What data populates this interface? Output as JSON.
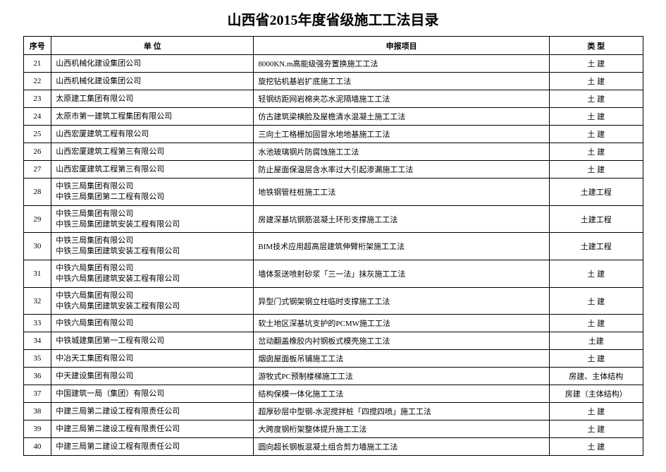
{
  "title": "山西省2015年度省级施工工法目录",
  "columns": {
    "seq": "序号",
    "unit": "单 位",
    "project": "申报项目",
    "type": "类 型"
  },
  "rows": [
    {
      "seq": "21",
      "unit": "山西机械化建设集团公司",
      "project": "8000KN.m高能级强夯置换施工工法",
      "type": "土 建"
    },
    {
      "seq": "22",
      "unit": "山西机械化建设集团公司",
      "project": "旋挖钻机基岩扩底施工工法",
      "type": "土 建"
    },
    {
      "seq": "23",
      "unit": "太原建工集团有限公司",
      "project": "轻钢纺距网岩棉夹芯水泥隔墙施工工法",
      "type": "土 建"
    },
    {
      "seq": "24",
      "unit": "太原市第一建筑工程集团有限公司",
      "project": "仿古建筑梁横脸及屋檐清水混凝土施工工法",
      "type": "土 建"
    },
    {
      "seq": "25",
      "unit": "山西宏厦建筑工程有限公司",
      "project": "三向土工格栅加固冒水地地基施工工法",
      "type": "土 建"
    },
    {
      "seq": "26",
      "unit": "山西宏厦建筑工程第三有限公司",
      "project": "水池玻璃钢片防腐蚀施工工法",
      "type": "土 建"
    },
    {
      "seq": "27",
      "unit": "山西宏厦建筑工程第三有限公司",
      "project": "防止屋面保温层含水率过大引起渗漏施工工法",
      "type": "土 建"
    },
    {
      "seq": "28",
      "unit": "中铁三局集团有限公司\n中铁三局集团第二工程有限公司",
      "project": "地铁钢管柱桩施工工法",
      "type": "土建工程"
    },
    {
      "seq": "29",
      "unit": "中铁三局集团有限公司\n中铁三局集团建筑安装工程有限公司",
      "project": "房建深基坑钢筋混凝土环形支撑施工工法",
      "type": "土建工程"
    },
    {
      "seq": "30",
      "unit": "中铁三局集团有限公司\n中铁三局集团建筑安装工程有限公司",
      "project": "BIM技术应用超高层建筑伸臂桁架施工工法",
      "type": "土建工程"
    },
    {
      "seq": "31",
      "unit": "中铁六局集团有限公司\n中铁六局集团建筑安装工程有限公司",
      "project": "墙体泵送喷射砂浆「三一法」抹灰施工工法",
      "type": "土 建"
    },
    {
      "seq": "32",
      "unit": "中铁六局集团有限公司\n中铁六局集团建筑安装工程有限公司",
      "project": "异型门式钢架钢立柱临时支撑施工工法",
      "type": "土 建"
    },
    {
      "seq": "33",
      "unit": "中铁六局集团有限公司",
      "project": "软土地区深基坑支护的PCMW施工工法",
      "type": "土 建"
    },
    {
      "seq": "34",
      "unit": "中铁城建集团第一工程有限公司",
      "project": "岔动翻盖橡胶内衬钢板式模壳施工工法",
      "type": "土建"
    },
    {
      "seq": "35",
      "unit": "中冶天工集团有限公司",
      "project": "烟囱屋面板吊铺施工工法",
      "type": "土 建"
    },
    {
      "seq": "36",
      "unit": "中天建设集团有限公司",
      "project": "游牧式PC预制楼梯施工工法",
      "type": "房建、主体结构"
    },
    {
      "seq": "37",
      "unit": "中国建筑一局（集团）有限公司",
      "project": "结构保模一体化施工工法",
      "type": "房建（主体结构）"
    },
    {
      "seq": "38",
      "unit": "中建三局第二建设工程有限责任公司",
      "project": "超厚砂层中型钢-水泥搅拌桩「四搅四喷」施工工法",
      "type": "土 建"
    },
    {
      "seq": "39",
      "unit": "中建三局第二建设工程有限责任公司",
      "project": "大跨度钢桁架整体提升施工工法",
      "type": "土 建"
    },
    {
      "seq": "40",
      "unit": "中建三局第二建设工程有限责任公司",
      "project": "圆向超长钢板混凝土组合剪力墙施工工法",
      "type": "土 建"
    }
  ]
}
